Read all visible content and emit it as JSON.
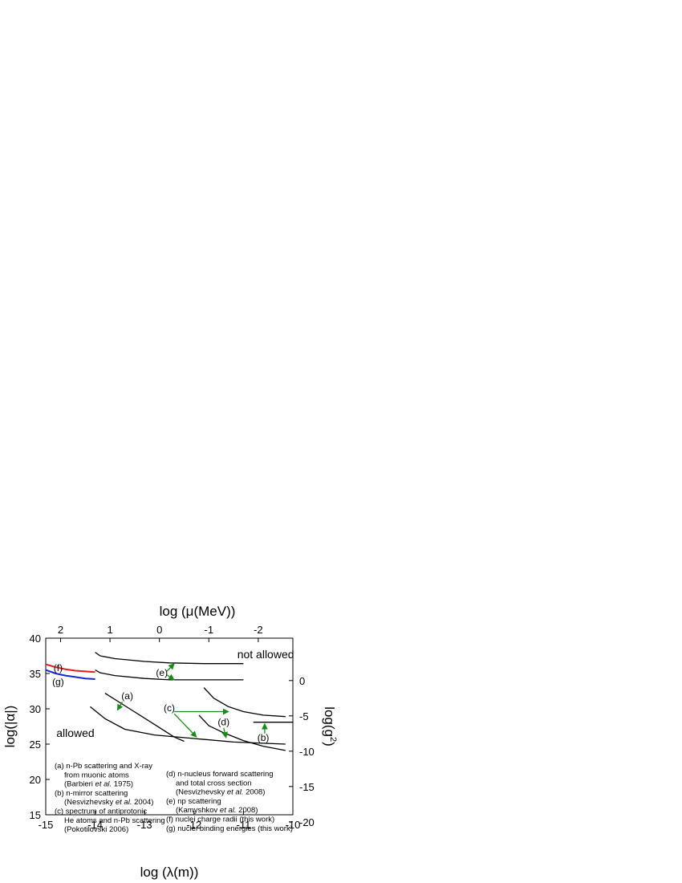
{
  "chart_data": {
    "type": "line",
    "xlabel": "log (λ(m))",
    "ylabel": "log(|α|)",
    "top_xlabel": "log (μ(MeV))",
    "right_ylabel_base": "log(g",
    "right_ylabel_sup": "2",
    "right_ylabel_end": ")",
    "xlim": [
      -15,
      -10
    ],
    "ylim": [
      15,
      40
    ],
    "x_ticks": [
      -15,
      -14,
      -13,
      -12,
      -11,
      -10
    ],
    "x_tick_labels": [
      "-15",
      "-14",
      "-13",
      "-12",
      "-11",
      "-10"
    ],
    "y_ticks": [
      15,
      20,
      25,
      30,
      35,
      40
    ],
    "y_tick_labels": [
      "15",
      "20",
      "25",
      "30",
      "35",
      "40"
    ],
    "top_ticks": [
      {
        "label": "2",
        "x": -14.7
      },
      {
        "label": "1",
        "x": -13.7
      },
      {
        "label": "0",
        "x": -12.7
      },
      {
        "label": "-1",
        "x": -11.7
      },
      {
        "label": "-2",
        "x": -10.7
      }
    ],
    "right_ticks": [
      {
        "label": "0",
        "y": 34.0
      },
      {
        "label": "-5",
        "y": 29.0
      },
      {
        "label": "-10",
        "y": 24.0
      },
      {
        "label": "-15",
        "y": 19.0
      },
      {
        "label": "-20",
        "y": 14.0
      }
    ],
    "series": [
      {
        "key": "f",
        "color": "#e41a1c",
        "points": [
          [
            -15.0,
            36.3
          ],
          [
            -14.8,
            35.9
          ],
          [
            -14.6,
            35.6
          ],
          [
            -14.4,
            35.4
          ],
          [
            -14.2,
            35.3
          ],
          [
            -14.0,
            35.2
          ]
        ]
      },
      {
        "key": "g",
        "color": "#1428d6",
        "points": [
          [
            -15.0,
            35.5
          ],
          [
            -14.8,
            35.0
          ],
          [
            -14.6,
            34.7
          ],
          [
            -14.4,
            34.5
          ],
          [
            -14.2,
            34.3
          ],
          [
            -14.0,
            34.2
          ]
        ]
      },
      {
        "key": "e-upper",
        "color": "#000000",
        "points": [
          [
            -14.0,
            38.0
          ],
          [
            -13.9,
            37.5
          ],
          [
            -13.6,
            37.1
          ],
          [
            -13.0,
            36.7
          ],
          [
            -12.5,
            36.5
          ],
          [
            -11.8,
            36.4
          ],
          [
            -11.0,
            36.4
          ]
        ]
      },
      {
        "key": "e-lower",
        "color": "#000000",
        "points": [
          [
            -14.0,
            35.5
          ],
          [
            -13.9,
            35.1
          ],
          [
            -13.6,
            34.7
          ],
          [
            -13.0,
            34.3
          ],
          [
            -12.5,
            34.1
          ],
          [
            -11.8,
            34.1
          ],
          [
            -11.0,
            34.1
          ]
        ]
      },
      {
        "key": "a",
        "color": "#000000",
        "points": [
          [
            -13.8,
            32.2
          ],
          [
            -13.3,
            30.0
          ],
          [
            -12.8,
            27.8
          ],
          [
            -12.4,
            26.0
          ],
          [
            -12.2,
            25.4
          ]
        ]
      },
      {
        "key": "b",
        "color": "#000000",
        "points": [
          [
            -10.8,
            28.1
          ],
          [
            -10.0,
            28.1
          ]
        ]
      },
      {
        "key": "c",
        "color": "#000000",
        "points": [
          [
            -14.1,
            30.3
          ],
          [
            -13.8,
            28.6
          ],
          [
            -13.4,
            27.1
          ],
          [
            -12.8,
            26.3
          ],
          [
            -12.0,
            25.8
          ],
          [
            -11.2,
            25.3
          ],
          [
            -10.5,
            25.1
          ],
          [
            -10.15,
            25.0
          ]
        ]
      },
      {
        "key": "d-upper",
        "color": "#000000",
        "points": [
          [
            -11.8,
            33.0
          ],
          [
            -11.6,
            31.5
          ],
          [
            -11.3,
            30.3
          ],
          [
            -11.0,
            29.6
          ],
          [
            -10.6,
            29.1
          ],
          [
            -10.15,
            28.9
          ]
        ]
      },
      {
        "key": "d-lower",
        "color": "#000000",
        "points": [
          [
            -11.9,
            29.1
          ],
          [
            -11.7,
            27.6
          ],
          [
            -11.4,
            26.6
          ],
          [
            -11.0,
            25.5
          ],
          [
            -10.6,
            24.7
          ],
          [
            -10.15,
            24.1
          ]
        ]
      }
    ],
    "arrows": [
      {
        "from": [
          -13.45,
          31.0
        ],
        "to": [
          -13.55,
          29.8
        ]
      },
      {
        "from": [
          -12.55,
          35.3
        ],
        "to": [
          -12.4,
          36.4
        ]
      },
      {
        "from": [
          -12.55,
          34.8
        ],
        "to": [
          -12.4,
          34.1
        ]
      },
      {
        "from": [
          -12.4,
          29.6
        ],
        "to": [
          -11.3,
          29.6
        ]
      },
      {
        "from": [
          -12.4,
          29.3
        ],
        "to": [
          -11.95,
          26.0
        ]
      },
      {
        "from": [
          -11.4,
          27.3
        ],
        "to": [
          -11.35,
          25.9
        ]
      },
      {
        "from": [
          -10.57,
          26.5
        ],
        "to": [
          -10.57,
          27.9
        ]
      }
    ],
    "curve_labels": [
      {
        "text": "(a)",
        "x": -13.35,
        "y": 31.8
      },
      {
        "text": "(e)",
        "x": -12.65,
        "y": 35.1
      },
      {
        "text": "(c)",
        "x": -12.5,
        "y": 30.1
      },
      {
        "text": "(d)",
        "x": -11.4,
        "y": 28.1
      },
      {
        "text": "(b)",
        "x": -10.6,
        "y": 25.9
      },
      {
        "text": "(f)",
        "x": -14.75,
        "y": 35.8
      },
      {
        "text": "(g)",
        "x": -14.75,
        "y": 33.8
      }
    ],
    "region_labels": [
      {
        "text": "not allowed",
        "x": -10.55,
        "y": 37.7
      },
      {
        "text": "allowed",
        "x": -14.4,
        "y": 26.6
      }
    ],
    "legend_left": [
      {
        "text": "(a) n-Pb scattering and X-ray",
        "indent": 0
      },
      {
        "text": "from muonic atoms",
        "indent": 1
      },
      {
        "text": "(Barbieri et al. 1975)",
        "indent": 1
      },
      {
        "text": "(b) n-mirror scattering",
        "indent": 0
      },
      {
        "text": "(Nesvizhevsky et al. 2004)",
        "indent": 1
      },
      {
        "text": "(c) spectrum of antiprotonic",
        "indent": 0
      },
      {
        "text": "He atoms and n-Pb scattering",
        "indent": 1
      },
      {
        "text": "(Pokotilovski 2006)",
        "indent": 1
      }
    ],
    "legend_right": [
      {
        "text": "(d) n-nucleus forward scattering",
        "indent": 0
      },
      {
        "text": "and total cross section",
        "indent": 1
      },
      {
        "text": "(Nesvizhevsky et al. 2008)",
        "indent": 1
      },
      {
        "text": "(e) np scattering",
        "indent": 0
      },
      {
        "text": "(Kamyshkov et al. 2008)",
        "indent": 1
      },
      {
        "text": "(f)  nuclei charge radii (this work)",
        "indent": 0
      },
      {
        "text": "(g)  nuclei binding energies (this work)",
        "indent": 0
      }
    ],
    "grid": false
  }
}
